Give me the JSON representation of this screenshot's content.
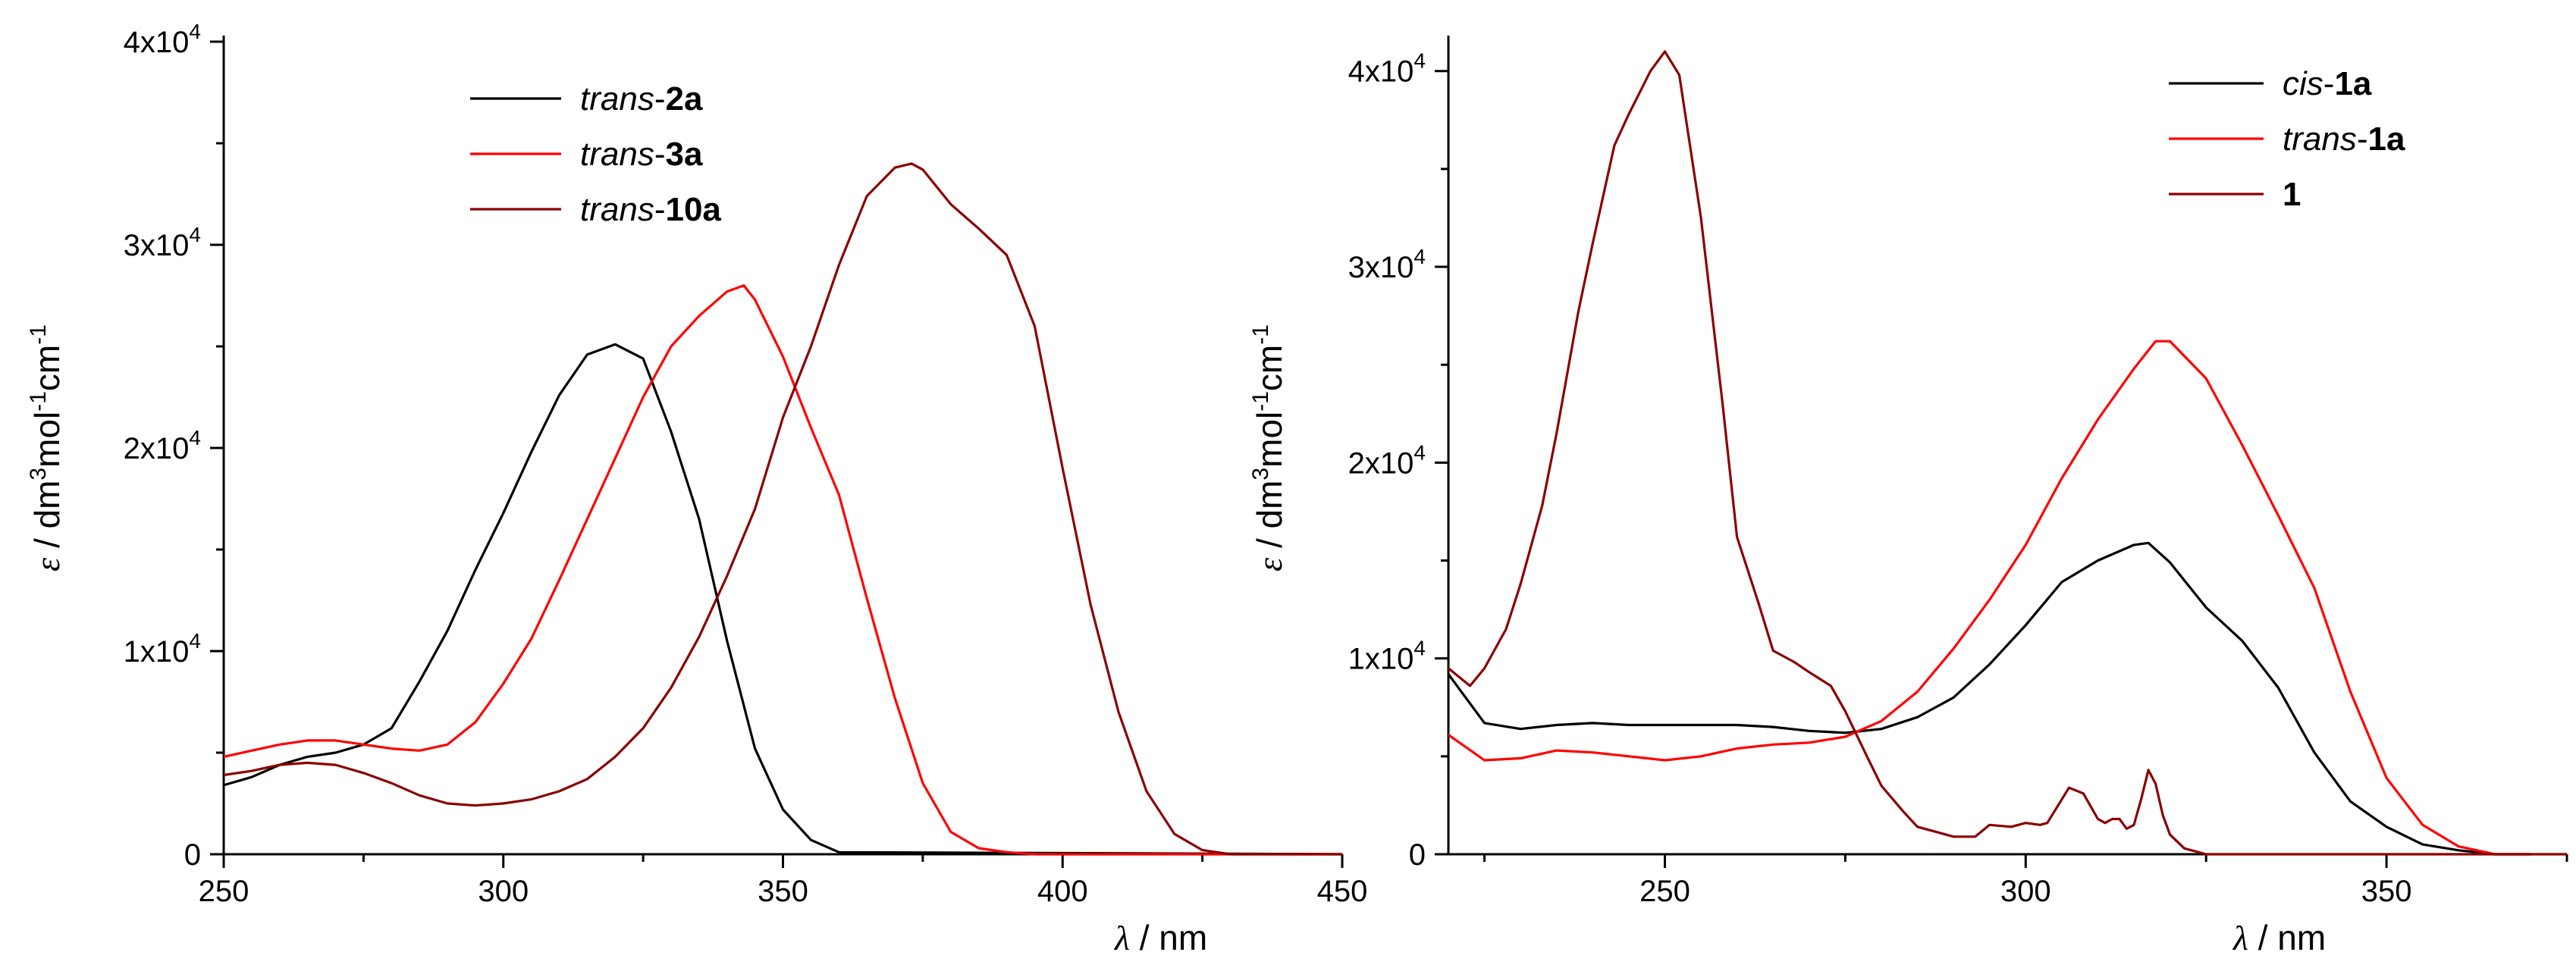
{
  "chart_data": [
    {
      "type": "line",
      "panel": "left",
      "xlabel": {
        "symbol": "λ",
        "unit": " / nm"
      },
      "ylabel": "ε / dm3mol-1cm-1",
      "xlim": [
        250,
        450
      ],
      "ylim": [
        0,
        40000
      ],
      "xticks": [
        250,
        300,
        350,
        400,
        450
      ],
      "xtick_labels": [
        "250",
        "300",
        "350",
        "400",
        "450"
      ],
      "yticks": [
        0,
        10000,
        20000,
        30000,
        40000
      ],
      "ytick_labels": [
        {
          "base": "0",
          "exp": ""
        },
        {
          "base": "1x10",
          "exp": "4"
        },
        {
          "base": "2x10",
          "exp": "4"
        },
        {
          "base": "3x10",
          "exp": "4"
        },
        {
          "base": "4x10",
          "exp": "4"
        }
      ],
      "legend_position": "top-left",
      "series": [
        {
          "name": "trans-2a",
          "label_italic": "trans",
          "label_bold": "2a",
          "color": "#000000",
          "x": [
            250,
            255,
            260,
            265,
            270,
            275,
            280,
            285,
            290,
            295,
            300,
            305,
            310,
            315,
            320,
            325,
            330,
            335,
            340,
            345,
            350,
            355,
            360,
            450
          ],
          "y": [
            3400,
            3800,
            4400,
            4800,
            5000,
            5400,
            6200,
            8500,
            11000,
            14000,
            16800,
            19800,
            22600,
            24600,
            25100,
            24400,
            20800,
            16500,
            10500,
            5200,
            2200,
            700,
            100,
            0
          ]
        },
        {
          "name": "trans-3a",
          "label_italic": "trans",
          "label_bold": "3a",
          "color": "#ff0000",
          "x": [
            250,
            255,
            260,
            265,
            270,
            275,
            280,
            285,
            290,
            295,
            300,
            305,
            310,
            315,
            320,
            325,
            330,
            335,
            340,
            343,
            345,
            350,
            355,
            360,
            365,
            370,
            375,
            380,
            385,
            390,
            395,
            400,
            450
          ],
          "y": [
            4800,
            5100,
            5400,
            5600,
            5600,
            5400,
            5200,
            5100,
            5400,
            6500,
            8400,
            10600,
            13500,
            16500,
            19500,
            22500,
            25000,
            26500,
            27700,
            28000,
            27300,
            24500,
            21000,
            17700,
            12600,
            7700,
            3500,
            1100,
            300,
            100,
            0,
            0,
            0
          ]
        },
        {
          "name": "trans-10a",
          "label_italic": "trans",
          "label_bold": "10a",
          "color": "#8b0000",
          "x": [
            250,
            255,
            260,
            265,
            270,
            275,
            280,
            285,
            290,
            295,
            300,
            305,
            310,
            315,
            320,
            325,
            330,
            335,
            340,
            345,
            350,
            355,
            360,
            365,
            370,
            373,
            375,
            380,
            385,
            390,
            395,
            400,
            405,
            410,
            415,
            420,
            425,
            430,
            450
          ],
          "y": [
            3900,
            4100,
            4400,
            4500,
            4400,
            4000,
            3500,
            2900,
            2500,
            2400,
            2500,
            2700,
            3100,
            3700,
            4800,
            6200,
            8200,
            10700,
            13700,
            17000,
            21500,
            25000,
            29000,
            32400,
            33800,
            34000,
            33700,
            32000,
            30800,
            29500,
            26000,
            19000,
            12300,
            7000,
            3100,
            1000,
            200,
            0,
            0
          ]
        }
      ]
    },
    {
      "type": "line",
      "panel": "right",
      "xlabel": {
        "symbol": "λ",
        "unit": " / nm"
      },
      "ylabel": "ε / dm3mol-1cm-1",
      "xlim": [
        220,
        375
      ],
      "ylim": [
        0,
        41500
      ],
      "xticks": [
        250,
        300,
        350
      ],
      "xtick_labels": [
        "250",
        "300",
        "350"
      ],
      "yticks": [
        0,
        10000,
        20000,
        30000,
        40000
      ],
      "ytick_labels": [
        {
          "base": "0",
          "exp": ""
        },
        {
          "base": "1x10",
          "exp": "4"
        },
        {
          "base": "2x10",
          "exp": "4"
        },
        {
          "base": "3x10",
          "exp": "4"
        },
        {
          "base": "4x10",
          "exp": "4"
        }
      ],
      "legend_position": "top-right",
      "series": [
        {
          "name": "cis-1a",
          "label_italic": "cis",
          "label_bold": "1a",
          "color": "#000000",
          "x": [
            220,
            225,
            230,
            235,
            240,
            245,
            250,
            255,
            260,
            265,
            270,
            275,
            280,
            285,
            290,
            295,
            300,
            305,
            310,
            315,
            317,
            320,
            325,
            330,
            335,
            340,
            345,
            350,
            355,
            360,
            365,
            370
          ],
          "y": [
            9200,
            6700,
            6400,
            6600,
            6700,
            6600,
            6600,
            6600,
            6600,
            6500,
            6300,
            6200,
            6400,
            7000,
            8000,
            9700,
            11700,
            13900,
            15000,
            15800,
            15900,
            14900,
            12600,
            10900,
            8500,
            5200,
            2700,
            1400,
            500,
            200,
            0,
            0
          ]
        },
        {
          "name": "trans-1a",
          "label_italic": "trans",
          "label_bold": "1a",
          "color": "#ff0000",
          "x": [
            220,
            225,
            230,
            235,
            240,
            245,
            250,
            255,
            260,
            265,
            270,
            275,
            280,
            285,
            290,
            295,
            300,
            305,
            310,
            315,
            318,
            320,
            325,
            330,
            335,
            340,
            345,
            350,
            355,
            360,
            365,
            370
          ],
          "y": [
            6100,
            4800,
            4900,
            5300,
            5200,
            5000,
            4800,
            5000,
            5400,
            5600,
            5700,
            6000,
            6800,
            8300,
            10500,
            13000,
            15800,
            19200,
            22200,
            24800,
            26200,
            26200,
            24300,
            20900,
            17300,
            13600,
            8300,
            3900,
            1500,
            400,
            0,
            0
          ]
        },
        {
          "name": "1",
          "label_italic": "",
          "label_bold": "1",
          "color": "#8b0000",
          "x": [
            220,
            223,
            225,
            228,
            230,
            233,
            235,
            238,
            240,
            243,
            245,
            248,
            250,
            252,
            255,
            258,
            260,
            263,
            265,
            268,
            270,
            273,
            275,
            278,
            280,
            283,
            285,
            288,
            290,
            293,
            295,
            298,
            300,
            302,
            303,
            305,
            306,
            308,
            310,
            311,
            312,
            313,
            314,
            315,
            316,
            317,
            318,
            319,
            320,
            322,
            324,
            325,
            330,
            375
          ],
          "y": [
            9500,
            8600,
            9500,
            11500,
            13800,
            17800,
            21500,
            27700,
            31200,
            36200,
            37800,
            40000,
            41000,
            39800,
            32500,
            23000,
            16200,
            12800,
            10400,
            9800,
            9300,
            8600,
            7300,
            5000,
            3500,
            2200,
            1400,
            1100,
            900,
            900,
            1500,
            1400,
            1600,
            1500,
            1600,
            2800,
            3400,
            3100,
            1800,
            1600,
            1800,
            1800,
            1300,
            1500,
            2800,
            4300,
            3600,
            2000,
            1000,
            300,
            100,
            0,
            0,
            0
          ]
        }
      ]
    }
  ]
}
